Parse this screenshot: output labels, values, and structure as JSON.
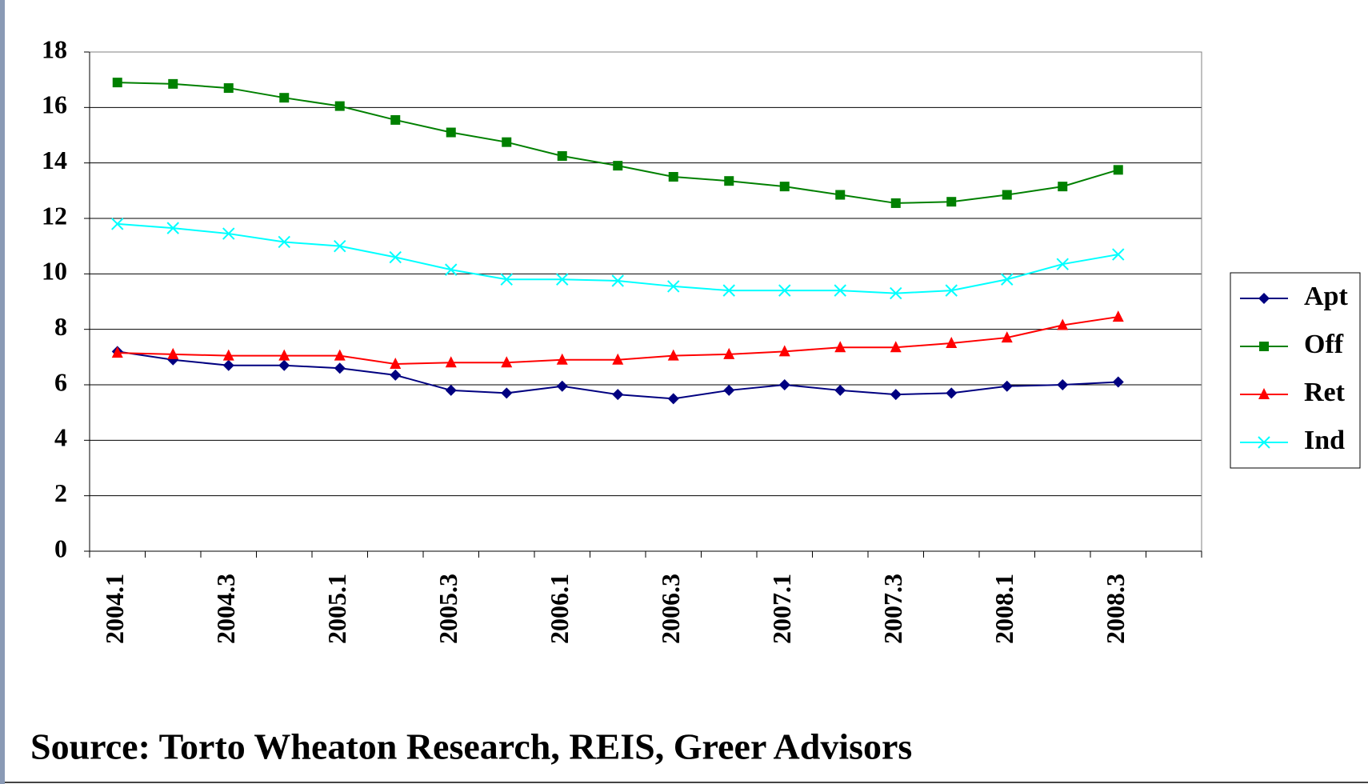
{
  "chart_data": {
    "type": "line",
    "categories": [
      "2004.1",
      null,
      "2004.3",
      null,
      "2005.1",
      null,
      "2005.3",
      null,
      "2006.1",
      null,
      "2006.3",
      null,
      "2007.1",
      null,
      "2007.3",
      null,
      "2008.1",
      null,
      "2008.3"
    ],
    "series": [
      {
        "name": "Apt",
        "color": "#000080",
        "marker": "diamond",
        "values": [
          7.2,
          6.9,
          6.7,
          6.7,
          6.6,
          6.35,
          5.8,
          5.7,
          5.95,
          5.65,
          5.5,
          5.8,
          6.0,
          5.8,
          5.65,
          5.7,
          5.95,
          6.0,
          6.1
        ]
      },
      {
        "name": "Off",
        "color": "#008000",
        "marker": "square",
        "values": [
          16.9,
          16.85,
          16.7,
          16.35,
          16.05,
          15.55,
          15.1,
          14.75,
          14.25,
          13.9,
          13.5,
          13.35,
          13.15,
          12.85,
          12.55,
          12.6,
          12.85,
          13.15,
          13.75
        ]
      },
      {
        "name": "Ret",
        "color": "#ff0000",
        "marker": "triangle",
        "values": [
          7.15,
          7.1,
          7.05,
          7.05,
          7.05,
          6.75,
          6.8,
          6.8,
          6.9,
          6.9,
          7.05,
          7.1,
          7.2,
          7.35,
          7.35,
          7.5,
          7.7,
          8.15,
          8.45
        ]
      },
      {
        "name": "Ind",
        "color": "#00ffff",
        "marker": "x",
        "values": [
          11.8,
          11.65,
          11.45,
          11.15,
          11.0,
          10.6,
          10.15,
          9.8,
          9.8,
          9.75,
          9.55,
          9.4,
          9.4,
          9.4,
          9.3,
          9.4,
          9.8,
          10.35,
          10.7
        ]
      }
    ],
    "ylim": [
      0,
      18
    ],
    "yticks": [
      0,
      2,
      4,
      6,
      8,
      10,
      12,
      14,
      16,
      18
    ],
    "grid": true,
    "legend": "right",
    "source": "Source: Torto Wheaton Research, REIS, Greer Advisors"
  }
}
